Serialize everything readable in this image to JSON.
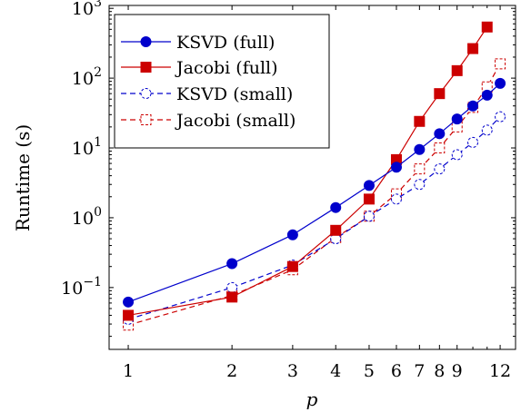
{
  "chart_data": {
    "type": "line",
    "xlabel": "p",
    "ylabel": "Runtime (s)",
    "x_scale": "log",
    "y_scale": "log",
    "xlim": [
      0.88,
      13.3
    ],
    "ylim": [
      0.013,
      1100
    ],
    "x_ticks": [
      1,
      2,
      3,
      4,
      5,
      6,
      7,
      8,
      9,
      12
    ],
    "x_tick_labels": [
      "1",
      "2",
      "3",
      "4",
      "5",
      "6",
      "7",
      "8",
      "9",
      "12"
    ],
    "y_ticks": [
      0.1,
      1,
      10,
      100,
      1000
    ],
    "y_tick_labels": [
      {
        "base": "10",
        "exp": "−1"
      },
      {
        "base": "10",
        "exp": "0"
      },
      {
        "base": "10",
        "exp": "1"
      },
      {
        "base": "10",
        "exp": "2"
      },
      {
        "base": "10",
        "exp": "3"
      }
    ],
    "grid": false,
    "legend_position": "top-left",
    "series": [
      {
        "name": "KSVD (full)",
        "color": "#0000cc",
        "line_style": "solid",
        "marker": "filled-circle",
        "points": [
          [
            1,
            0.062
          ],
          [
            2,
            0.22
          ],
          [
            3,
            0.57
          ],
          [
            4,
            1.4
          ],
          [
            5,
            2.9
          ],
          [
            6,
            5.3
          ],
          [
            7,
            9.5
          ],
          [
            8,
            16
          ],
          [
            9,
            26
          ],
          [
            10,
            40
          ],
          [
            11,
            57
          ],
          [
            12,
            84
          ]
        ]
      },
      {
        "name": "Jacobi (full)",
        "color": "#cc0000",
        "line_style": "solid",
        "marker": "filled-square",
        "points": [
          [
            1,
            0.04
          ],
          [
            2,
            0.073
          ],
          [
            3,
            0.2
          ],
          [
            4,
            0.66
          ],
          [
            5,
            1.85
          ],
          [
            6,
            6.8
          ],
          [
            7,
            24
          ],
          [
            8,
            60
          ],
          [
            9,
            128
          ],
          [
            10,
            265
          ],
          [
            11,
            540
          ]
        ]
      },
      {
        "name": "KSVD (small)",
        "color": "#0000cc",
        "line_style": "dashed",
        "marker": "open-circle",
        "points": [
          [
            1,
            0.035
          ],
          [
            2,
            0.1
          ],
          [
            3,
            0.21
          ],
          [
            4,
            0.5
          ],
          [
            5,
            1.05
          ],
          [
            6,
            1.85
          ],
          [
            7,
            3.0
          ],
          [
            8,
            5.0
          ],
          [
            9,
            8.0
          ],
          [
            10,
            12
          ],
          [
            11,
            18
          ],
          [
            12,
            28
          ]
        ]
      },
      {
        "name": "Jacobi (small)",
        "color": "#cc0000",
        "line_style": "dashed",
        "marker": "open-square",
        "points": [
          [
            1,
            0.029
          ],
          [
            2,
            0.077
          ],
          [
            3,
            0.18
          ],
          [
            4,
            0.52
          ],
          [
            5,
            1.05
          ],
          [
            6,
            2.2
          ],
          [
            7,
            5.0
          ],
          [
            8,
            10
          ],
          [
            9,
            20
          ],
          [
            10,
            38
          ],
          [
            11,
            75
          ],
          [
            12,
            160
          ]
        ]
      }
    ]
  }
}
